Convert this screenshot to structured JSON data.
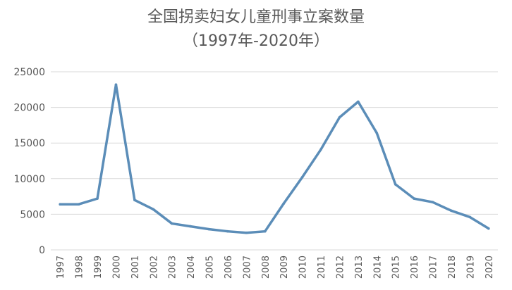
{
  "chart_data": {
    "type": "line",
    "title": "全国拐卖妇女儿童刑事立案数量",
    "subtitle": "（1997年-2020年）",
    "xlabel": "",
    "ylabel": "",
    "ylim": [
      0,
      25000
    ],
    "yticks": [
      "0",
      "5000",
      "10000",
      "15000",
      "20000",
      "25000"
    ],
    "grid": true,
    "x": [
      "1997",
      "1998",
      "1999",
      "2000",
      "2001",
      "2002",
      "2003",
      "2004",
      "2005",
      "2006",
      "2007",
      "2008",
      "2009",
      "2010",
      "2011",
      "2012",
      "2013",
      "2014",
      "2015",
      "2016",
      "2017",
      "2018",
      "2019",
      "2020"
    ],
    "values": [
      6400,
      6400,
      7200,
      23200,
      7000,
      5700,
      3700,
      3300,
      2900,
      2600,
      2400,
      2600,
      6500,
      10200,
      14100,
      18600,
      20800,
      16400,
      9200,
      7200,
      6700,
      5500,
      4600,
      3000
    ],
    "line_color": "#5b8db8"
  }
}
